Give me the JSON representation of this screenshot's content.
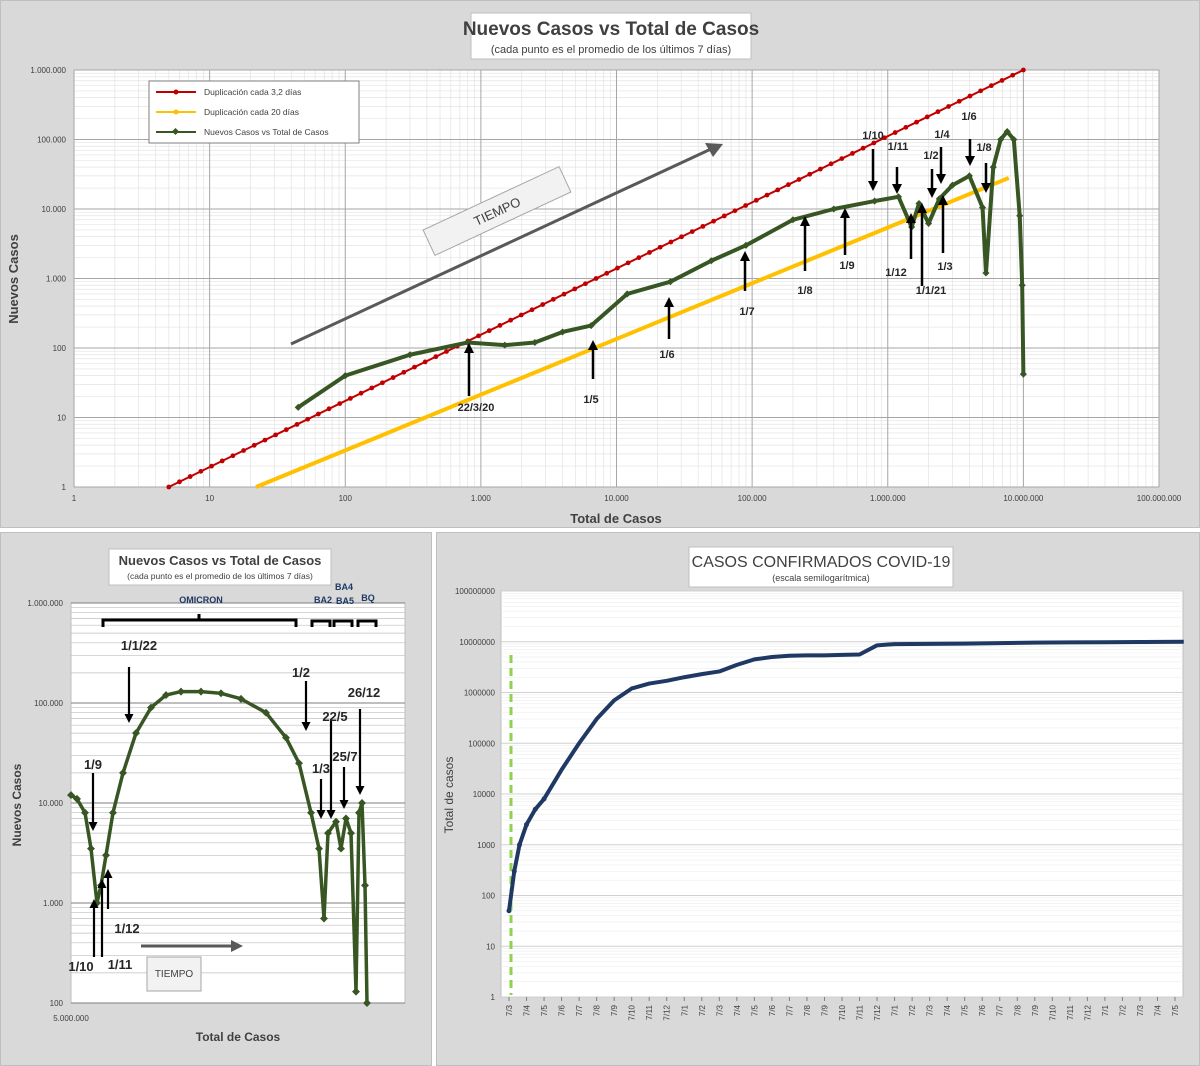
{
  "chart_data": [
    {
      "type": "line",
      "title": "Nuevos Casos vs Total de Casos",
      "subtitle": "(cada punto es el promedio de los últimos 7 días)",
      "xlabel": "Total de Casos",
      "ylabel": "Nuevos Casos",
      "x_scale": "log",
      "y_scale": "log",
      "xlim": [
        1,
        100000000
      ],
      "ylim": [
        1,
        1000000
      ],
      "x_ticks": [
        "1",
        "10",
        "100",
        "1.000",
        "10.000",
        "100.000",
        "1.000.000",
        "10.000.000",
        "100.000.000"
      ],
      "y_ticks": [
        "1",
        "10",
        "100",
        "1.000",
        "10.000",
        "100.000",
        "1.000.000"
      ],
      "legend_position": "top-left",
      "grid": true,
      "series": [
        {
          "name": "Duplicación cada 3,2 días",
          "color": "#c00000",
          "x": [
            5,
            10000000
          ],
          "y": [
            1,
            1000000
          ]
        },
        {
          "name": "Duplicación cada 20 días",
          "color": "#ffc000",
          "x": [
            22,
            7800000
          ],
          "y": [
            1,
            28000
          ]
        },
        {
          "name": "Nuevos Casos vs Total de Casos",
          "color": "#375623",
          "x": [
            45,
            100,
            300,
            800,
            1500,
            2500,
            4000,
            6500,
            12000,
            25000,
            50000,
            90000,
            200000,
            400000,
            800000,
            1200000,
            1500000,
            1700000,
            2000000,
            2400000,
            3000000,
            4000000,
            5000000,
            5300000,
            6000000,
            6800000,
            7600000,
            8500000,
            9400000,
            9800000,
            10000000
          ],
          "y": [
            14,
            40,
            80,
            120,
            110,
            120,
            170,
            210,
            600,
            900,
            1800,
            3000,
            7000,
            10000,
            13000,
            15000,
            5500,
            12000,
            6200,
            14000,
            22000,
            30000,
            10500,
            1200,
            40000,
            100000,
            130000,
            100000,
            8000,
            800,
            42
          ]
        }
      ],
      "annotations": [
        "22/3/20",
        "1/5",
        "1/6",
        "1/7",
        "1/8",
        "1/9",
        "1/10",
        "1/11",
        "1/12",
        "1/1/21",
        "1/2",
        "1/3",
        "1/4",
        "1/6",
        "1/8"
      ],
      "watermark": "TIEMPO"
    },
    {
      "type": "line",
      "title": "Nuevos Casos vs Total de Casos",
      "subtitle": "(cada punto es el promedio de los últimos 7 días)",
      "xlabel": "Total de Casos",
      "ylabel": "Nuevos Casos",
      "x_tick": "5.000.000",
      "y_scale": "log",
      "ylim": [
        100,
        1000000
      ],
      "y_ticks": [
        "100",
        "1.000",
        "10.000",
        "100.000",
        "1.000.000"
      ],
      "brackets": [
        "OMICRON",
        "BA2",
        "BA4",
        "BA5",
        "BQ"
      ],
      "annotations": [
        "1/9",
        "1/10",
        "1/11",
        "1/12",
        "1/1/22",
        "1/2",
        "1/3",
        "22/5",
        "25/7",
        "26/12"
      ],
      "watermark": "TIEMPO",
      "series": [
        {
          "name": "Nuevos Casos vs Total de Casos",
          "color": "#375623",
          "y": [
            12000,
            11000,
            8000,
            3500,
            1000,
            1500,
            3000,
            8000,
            20000,
            50000,
            90000,
            120000,
            130000,
            130000,
            125000,
            110000,
            80000,
            45000,
            25000,
            8000,
            3500,
            700,
            5000,
            6500,
            3500,
            7000,
            5000,
            130,
            8000,
            10000,
            1500,
            100
          ]
        }
      ]
    },
    {
      "type": "line",
      "title": "CASOS CONFIRMADOS COVID-19",
      "subtitle": "(escala semilogarítmica)",
      "ylabel": "Total de casos",
      "y_scale": "log",
      "ylim": [
        1,
        100000000
      ],
      "y_ticks": [
        "1",
        "10",
        "100",
        "1000",
        "10000",
        "100000",
        "1000000",
        "10000000",
        "100000000"
      ],
      "x_ticks": [
        "7/3",
        "7/4",
        "7/5",
        "7/6",
        "7/7",
        "7/8",
        "7/9",
        "7/10",
        "7/11",
        "7/12",
        "7/1",
        "7/2",
        "7/3",
        "7/4",
        "7/5",
        "7/6",
        "7/7",
        "7/8",
        "7/9",
        "7/10",
        "7/11",
        "7/12",
        "7/1",
        "7/2",
        "7/3",
        "7/4",
        "7/5",
        "7/6",
        "7/7",
        "7/8",
        "7/9",
        "7/10",
        "7/11",
        "7/12",
        "7/1",
        "7/2",
        "7/3",
        "7/4",
        "7/5"
      ],
      "series": [
        {
          "name": "",
          "color": "#1f3864",
          "x": [
            0,
            0.3,
            0.6,
            1,
            1.5,
            2,
            3,
            4,
            5,
            6,
            7,
            8,
            9,
            10,
            11,
            12,
            13,
            14,
            15,
            16,
            17,
            18,
            19,
            20,
            21,
            22,
            24,
            26,
            28,
            30,
            32,
            34,
            36,
            38.5
          ],
          "y": [
            50,
            300,
            1000,
            2500,
            5000,
            8000,
            30000,
            100000,
            300000,
            700000,
            1200000,
            1500000,
            1700000,
            2000000,
            2300000,
            2600000,
            3500000,
            4500000,
            5000000,
            5300000,
            5400000,
            5400000,
            5500000,
            5600000,
            8500000,
            9000000,
            9100000,
            9200000,
            9400000,
            9600000,
            9700000,
            9800000,
            9900000,
            10000000
          ]
        }
      ]
    }
  ]
}
